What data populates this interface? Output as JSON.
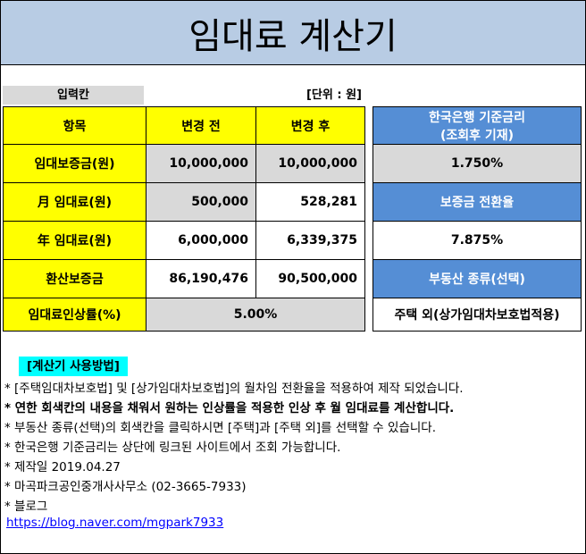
{
  "header": {
    "title": "임대료 계산기"
  },
  "input_label": "입력칸",
  "unit": "[단위 : 원]",
  "table": {
    "header": [
      "항목",
      "변경 전",
      "변경 후"
    ],
    "rows": [
      [
        "임대보증금(원)",
        "10,000,000",
        "10,000,000"
      ],
      [
        "月 임대료(원)",
        "500,000",
        "528,281"
      ],
      [
        "年 임대료(원)",
        "6,000,000",
        "6,339,375"
      ],
      [
        "환산보증금",
        "86,190,476",
        "90,500,000"
      ],
      [
        "임대료인상률(%)",
        "5.00%"
      ]
    ]
  },
  "side": {
    "rate_label": [
      "한국은행 기준금리",
      "(조회후 기재)"
    ],
    "rate_value": "1.750%",
    "conversion_label": "보증금 전환율",
    "conversion_value": "7.875%",
    "type_label": "부동산 종류(선택)",
    "type_value": "주택 외(상가임대차보호법적용)"
  },
  "instructions": {
    "title": "[계산기 사용방법]",
    "lines": [
      "* [주택임대차보호법] 및 [상가임대차보호법]의 월차임 전환율을 적용하여 제작 되었습니다.",
      "* 연한 회색칸의 내용을 채워서 원하는 인상률을 적용한 인상 후 월 임대료를 계산합니다.",
      "* 부동산 종류(선택)의 회색칸을 클릭하시면 [주택]과 [주택 외]를 선택할 수 있습니다.",
      "* 한국은행 기준금리는 상단에 링크된 사이트에서 조회 가능합니다.",
      "* 제작일 2019.04.27",
      "* 마곡파크공인중개사사무소 (02-3665-7933)",
      "* 블로그"
    ],
    "link": "https://blog.naver.com/mgpark7933"
  }
}
